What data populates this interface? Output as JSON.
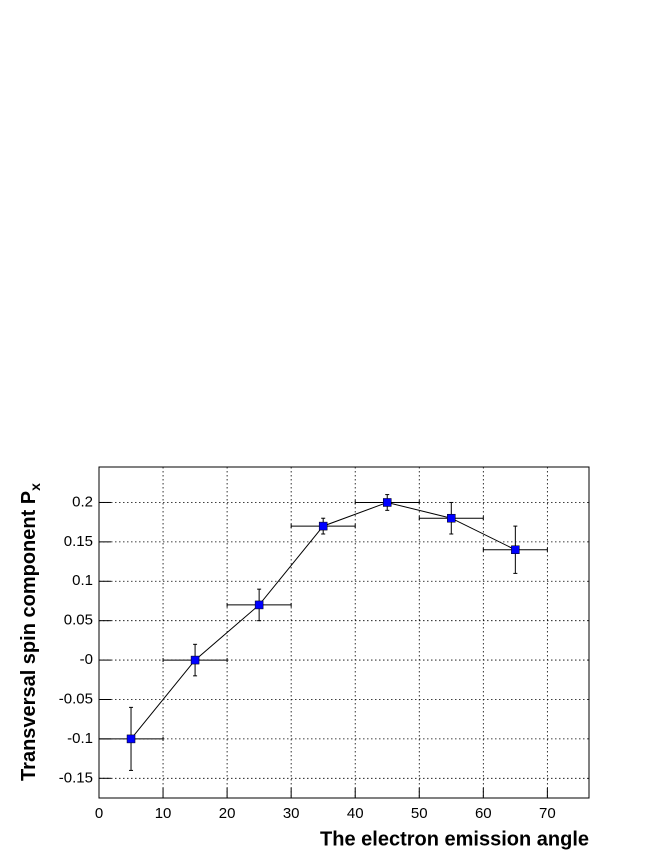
{
  "chart_data": {
    "type": "errorbar",
    "xlabel": "The electron emission angle",
    "ylabel": "Transversal spin component P",
    "ylabel_subscript": "x",
    "x": [
      5,
      15,
      25,
      35,
      45,
      55,
      65
    ],
    "series": [
      {
        "color": "#0000ff",
        "values": [
          -0.1,
          0,
          0.07,
          0.17,
          0.2,
          0.18,
          0.14
        ],
        "xerr": [
          5,
          5,
          5,
          5,
          5,
          5,
          5
        ],
        "yerr": [
          0.04,
          0.02,
          0.02,
          0.01,
          0.01,
          0.02,
          0.03
        ]
      }
    ],
    "xlim": [
      0,
      76.5
    ],
    "ylim": [
      -0.175,
      0.245
    ],
    "xticks": [
      0,
      10,
      20,
      30,
      40,
      50,
      60,
      70
    ],
    "yticks": [
      -0.15,
      -0.1,
      -0.05,
      {
        "value": 0,
        "label": "-0"
      },
      0.05,
      0.1,
      0.15,
      0.2
    ],
    "grid": true
  }
}
